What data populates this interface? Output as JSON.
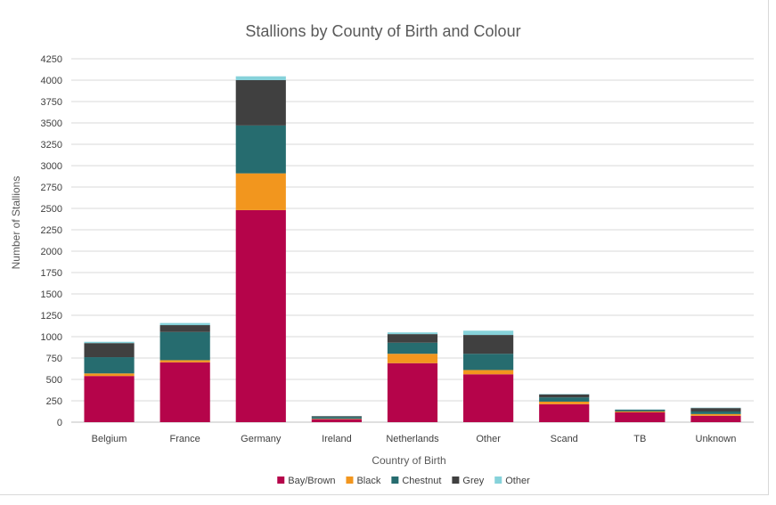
{
  "chart_data": {
    "type": "bar",
    "stacked": true,
    "title": "Stallions by County of Birth and Colour",
    "xlabel": "Country of Birth",
    "ylabel": "Number of Stallions",
    "ylim": [
      0,
      4250
    ],
    "yticks": [
      0,
      250,
      500,
      750,
      1000,
      1250,
      1500,
      1750,
      2000,
      2250,
      2500,
      2750,
      3000,
      3250,
      3500,
      3750,
      4000,
      4250
    ],
    "grid": true,
    "legend_position": "bottom",
    "categories": [
      "Belgium",
      "France",
      "Germany",
      "Ireland",
      "Netherlands",
      "Other",
      "Scand",
      "TB",
      "Unknown"
    ],
    "series": [
      {
        "name": "Bay/Brown",
        "color": "#B5044A",
        "values": [
          540,
          700,
          2480,
          35,
          690,
          560,
          210,
          115,
          75
        ]
      },
      {
        "name": "Black",
        "color": "#F2961E",
        "values": [
          30,
          25,
          430,
          5,
          110,
          50,
          30,
          10,
          20
        ]
      },
      {
        "name": "Chestnut",
        "color": "#266C6F",
        "values": [
          190,
          330,
          560,
          20,
          130,
          190,
          50,
          15,
          30
        ]
      },
      {
        "name": "Grey",
        "color": "#404040",
        "values": [
          165,
          80,
          530,
          10,
          100,
          220,
          35,
          5,
          40
        ]
      },
      {
        "name": "Other",
        "color": "#86D2DA",
        "values": [
          15,
          25,
          45,
          2,
          20,
          50,
          5,
          5,
          5
        ]
      }
    ]
  }
}
